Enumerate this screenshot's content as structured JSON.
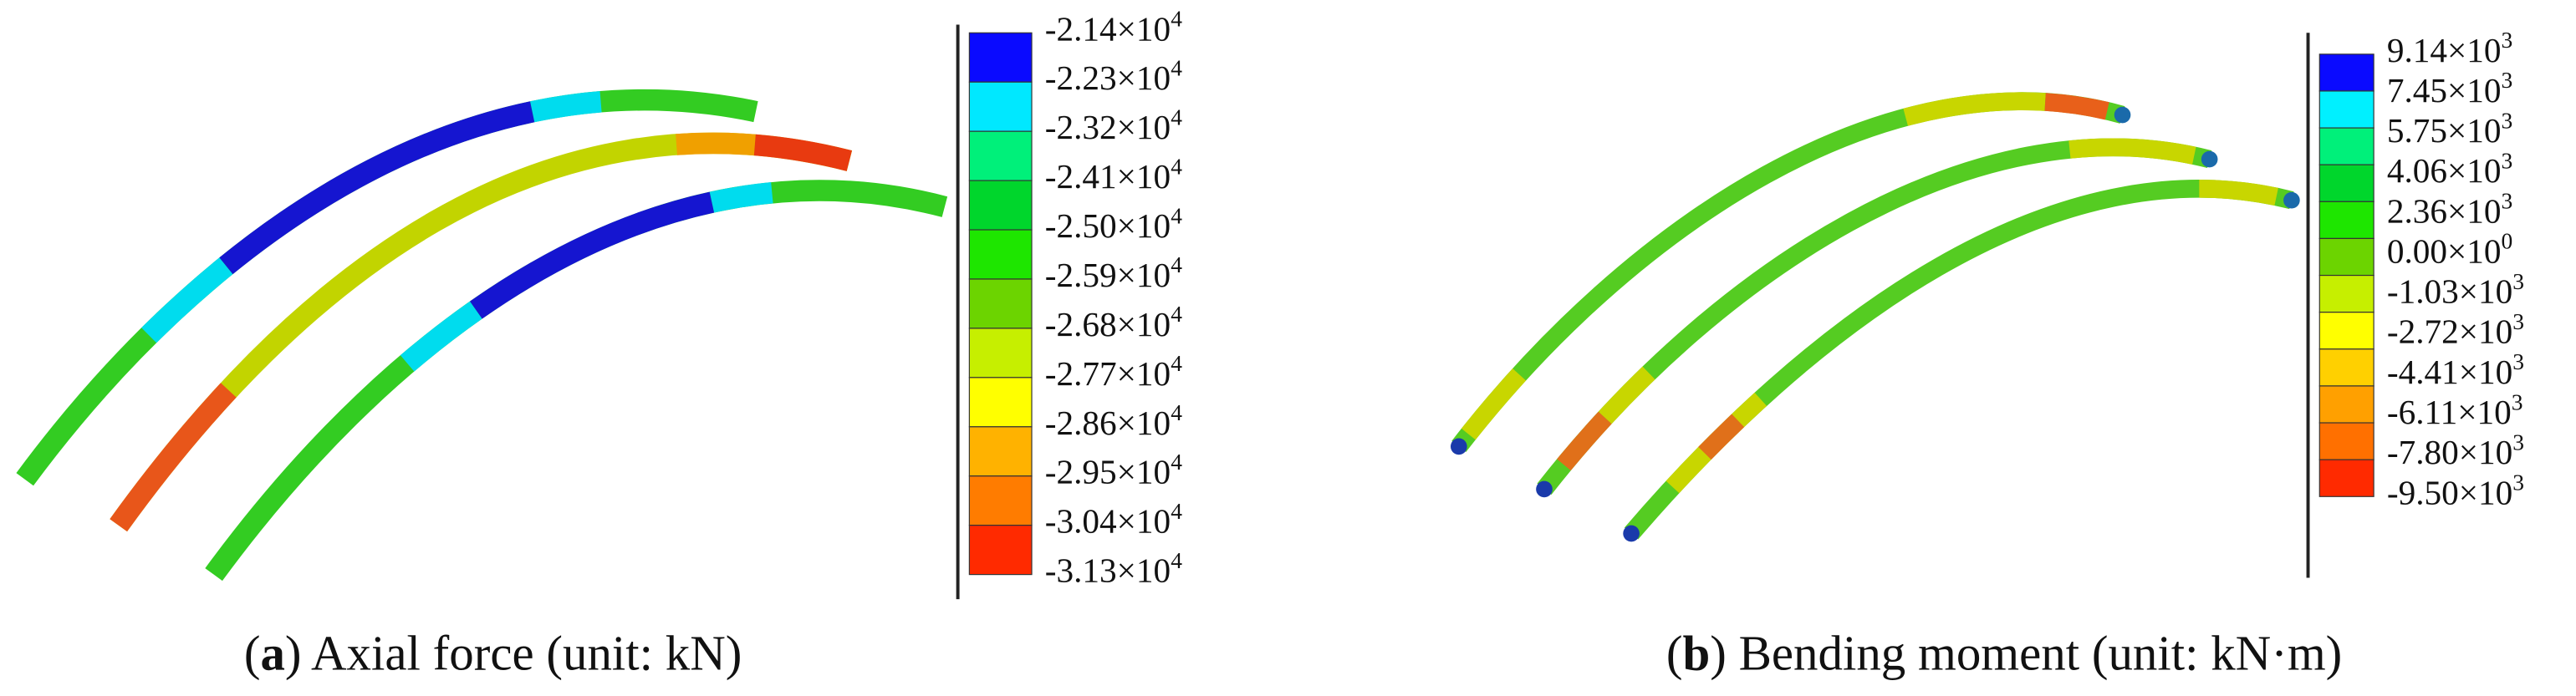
{
  "panels": [
    {
      "caption": {
        "open": "(",
        "label": "a",
        "text": ") Axial force (unit: kN)"
      },
      "legend": {
        "colors": [
          "#0a0aff",
          "#00e8ff",
          "#00f07a",
          "#00d62c",
          "#1ee600",
          "#6cd400",
          "#c6ef00",
          "#ffff00",
          "#ffb200",
          "#ff7c00",
          "#ff2a00"
        ],
        "labels": [
          {
            "mantissa": "-2.14×10",
            "exponent": "4"
          },
          {
            "mantissa": "-2.23×10",
            "exponent": "4"
          },
          {
            "mantissa": "-2.32×10",
            "exponent": "4"
          },
          {
            "mantissa": "-2.41×10",
            "exponent": "4"
          },
          {
            "mantissa": "-2.50×10",
            "exponent": "4"
          },
          {
            "mantissa": "-2.59×10",
            "exponent": "4"
          },
          {
            "mantissa": "-2.68×10",
            "exponent": "4"
          },
          {
            "mantissa": "-2.77×10",
            "exponent": "4"
          },
          {
            "mantissa": "-2.86×10",
            "exponent": "4"
          },
          {
            "mantissa": "-2.95×10",
            "exponent": "4"
          },
          {
            "mantissa": "-3.04×10",
            "exponent": "4"
          },
          {
            "mantissa": "-3.13×10",
            "exponent": "4"
          }
        ]
      }
    },
    {
      "caption": {
        "open": "(",
        "label": "b",
        "text": ") Bending moment (unit: kN·m)"
      },
      "legend": {
        "colors": [
          "#0a0aff",
          "#00f0ff",
          "#00f07a",
          "#00d62c",
          "#1ee600",
          "#6cd400",
          "#c6ef00",
          "#ffff00",
          "#ffd000",
          "#ffa000",
          "#ff7000",
          "#ff2a00"
        ],
        "labels": [
          {
            "mantissa": "9.14×10",
            "exponent": "3"
          },
          {
            "mantissa": "7.45×10",
            "exponent": "3"
          },
          {
            "mantissa": "5.75×10",
            "exponent": "3"
          },
          {
            "mantissa": "4.06×10",
            "exponent": "3"
          },
          {
            "mantissa": "2.36×10",
            "exponent": "3"
          },
          {
            "mantissa": "0.00×10",
            "exponent": "0"
          },
          {
            "mantissa": "-1.03×10",
            "exponent": "3"
          },
          {
            "mantissa": "-2.72×10",
            "exponent": "3"
          },
          {
            "mantissa": "-4.41×10",
            "exponent": "3"
          },
          {
            "mantissa": "-6.11×10",
            "exponent": "3"
          },
          {
            "mantissa": "-7.80×10",
            "exponent": "3"
          },
          {
            "mantissa": "-9.50×10",
            "exponent": "3"
          }
        ]
      }
    }
  ]
}
